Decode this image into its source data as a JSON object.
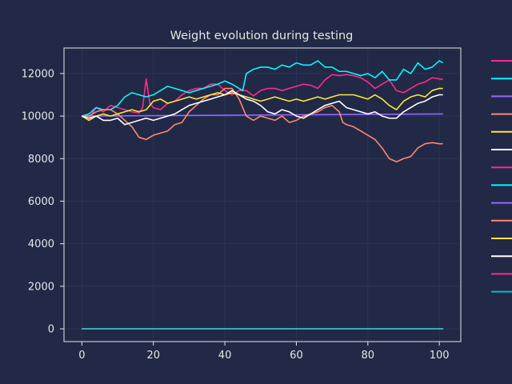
{
  "chart_data": {
    "type": "line",
    "title": "Weight evolution during testing",
    "xlabel": "",
    "ylabel": "",
    "xlim": [
      -5,
      106
    ],
    "ylim": [
      -600,
      13200
    ],
    "xticks": [
      0,
      20,
      40,
      60,
      80,
      100
    ],
    "yticks": [
      0,
      2000,
      4000,
      6000,
      8000,
      10000,
      12000
    ],
    "grid": true,
    "legend": "right (entries shown without labels)",
    "colors": {
      "background": "#212946",
      "grid": "#2a3459",
      "axis": "#e6e6e6",
      "text": "#e6e6e6"
    },
    "series": [
      {
        "color": "#ff2a8a",
        "points": [
          [
            0,
            10000
          ],
          [
            2,
            9900
          ],
          [
            4,
            10400
          ],
          [
            6,
            10200
          ],
          [
            8,
            10500
          ],
          [
            10,
            10400
          ],
          [
            12,
            10300
          ],
          [
            14,
            10200
          ],
          [
            16,
            10150
          ],
          [
            17,
            10400
          ],
          [
            18,
            11750
          ],
          [
            19,
            10600
          ],
          [
            20,
            10400
          ],
          [
            22,
            10300
          ],
          [
            24,
            10600
          ],
          [
            26,
            10700
          ],
          [
            28,
            11000
          ],
          [
            30,
            11200
          ],
          [
            32,
            11300
          ],
          [
            34,
            11300
          ],
          [
            36,
            11500
          ],
          [
            38,
            11500
          ],
          [
            40,
            11200
          ],
          [
            42,
            11000
          ],
          [
            44,
            11200
          ],
          [
            46,
            11200
          ],
          [
            48,
            10950
          ],
          [
            50,
            11200
          ],
          [
            52,
            11300
          ],
          [
            54,
            11300
          ],
          [
            56,
            11200
          ],
          [
            58,
            11300
          ],
          [
            60,
            11400
          ],
          [
            62,
            11500
          ],
          [
            64,
            11450
          ],
          [
            66,
            11300
          ],
          [
            68,
            11700
          ],
          [
            70,
            11950
          ],
          [
            72,
            11900
          ],
          [
            74,
            11950
          ],
          [
            76,
            11900
          ],
          [
            78,
            11800
          ],
          [
            80,
            11600
          ],
          [
            82,
            11300
          ],
          [
            84,
            11500
          ],
          [
            86,
            11700
          ],
          [
            88,
            11200
          ],
          [
            90,
            11100
          ],
          [
            92,
            11300
          ],
          [
            94,
            11500
          ],
          [
            96,
            11600
          ],
          [
            98,
            11800
          ],
          [
            100,
            11750
          ],
          [
            101,
            11720
          ]
        ]
      },
      {
        "color": "#08f7fe",
        "points": [
          [
            0,
            10000
          ],
          [
            2,
            10100
          ],
          [
            4,
            10400
          ],
          [
            6,
            10300
          ],
          [
            8,
            10300
          ],
          [
            10,
            10500
          ],
          [
            12,
            10900
          ],
          [
            14,
            11100
          ],
          [
            16,
            11000
          ],
          [
            18,
            10900
          ],
          [
            20,
            11000
          ],
          [
            22,
            11200
          ],
          [
            24,
            11400
          ],
          [
            26,
            11300
          ],
          [
            28,
            11200
          ],
          [
            30,
            11100
          ],
          [
            32,
            11200
          ],
          [
            34,
            11300
          ],
          [
            36,
            11400
          ],
          [
            38,
            11500
          ],
          [
            40,
            11650
          ],
          [
            42,
            11500
          ],
          [
            44,
            11300
          ],
          [
            45,
            11200
          ],
          [
            46,
            12000
          ],
          [
            48,
            12200
          ],
          [
            50,
            12300
          ],
          [
            52,
            12300
          ],
          [
            54,
            12200
          ],
          [
            56,
            12400
          ],
          [
            58,
            12300
          ],
          [
            60,
            12500
          ],
          [
            62,
            12400
          ],
          [
            64,
            12400
          ],
          [
            66,
            12600
          ],
          [
            68,
            12300
          ],
          [
            70,
            12300
          ],
          [
            72,
            12100
          ],
          [
            74,
            12100
          ],
          [
            76,
            12000
          ],
          [
            78,
            11900
          ],
          [
            80,
            12000
          ],
          [
            82,
            11800
          ],
          [
            84,
            12100
          ],
          [
            86,
            11700
          ],
          [
            88,
            11700
          ],
          [
            90,
            12200
          ],
          [
            92,
            12000
          ],
          [
            94,
            12500
          ],
          [
            96,
            12200
          ],
          [
            98,
            12300
          ],
          [
            100,
            12600
          ],
          [
            101,
            12500
          ]
        ]
      },
      {
        "color": "#9467ff",
        "points": [
          [
            0,
            10000
          ],
          [
            20,
            10020
          ],
          [
            40,
            10040
          ],
          [
            60,
            10060
          ],
          [
            80,
            10080
          ],
          [
            101,
            10100
          ]
        ]
      },
      {
        "color": "#ff8870",
        "points": [
          [
            0,
            10000
          ],
          [
            2,
            10000
          ],
          [
            4,
            10200
          ],
          [
            6,
            10300
          ],
          [
            8,
            10300
          ],
          [
            10,
            10100
          ],
          [
            12,
            9800
          ],
          [
            14,
            9500
          ],
          [
            16,
            9000
          ],
          [
            18,
            8900
          ],
          [
            20,
            9100
          ],
          [
            22,
            9200
          ],
          [
            24,
            9300
          ],
          [
            26,
            9600
          ],
          [
            28,
            9700
          ],
          [
            30,
            10200
          ],
          [
            32,
            10500
          ],
          [
            34,
            10800
          ],
          [
            36,
            11000
          ],
          [
            38,
            11000
          ],
          [
            40,
            11300
          ],
          [
            42,
            11300
          ],
          [
            44,
            10800
          ],
          [
            46,
            10000
          ],
          [
            48,
            9800
          ],
          [
            50,
            10000
          ],
          [
            52,
            9900
          ],
          [
            54,
            9800
          ],
          [
            56,
            10000
          ],
          [
            58,
            9700
          ],
          [
            60,
            9800
          ],
          [
            62,
            10000
          ],
          [
            64,
            10100
          ],
          [
            66,
            10200
          ],
          [
            68,
            10400
          ],
          [
            70,
            10500
          ],
          [
            72,
            10200
          ],
          [
            73,
            9700
          ],
          [
            74,
            9600
          ],
          [
            76,
            9500
          ],
          [
            78,
            9300
          ],
          [
            80,
            9100
          ],
          [
            82,
            8900
          ],
          [
            84,
            8500
          ],
          [
            86,
            8000
          ],
          [
            88,
            7850
          ],
          [
            90,
            8000
          ],
          [
            92,
            8100
          ],
          [
            94,
            8500
          ],
          [
            96,
            8700
          ],
          [
            98,
            8750
          ],
          [
            100,
            8700
          ],
          [
            101,
            8700
          ]
        ]
      },
      {
        "color": "#fee440",
        "points": [
          [
            0,
            10000
          ],
          [
            2,
            9800
          ],
          [
            4,
            10000
          ],
          [
            6,
            10100
          ],
          [
            8,
            10000
          ],
          [
            10,
            10100
          ],
          [
            12,
            10200
          ],
          [
            14,
            10300
          ],
          [
            16,
            10200
          ],
          [
            18,
            10300
          ],
          [
            20,
            10700
          ],
          [
            22,
            10800
          ],
          [
            24,
            10600
          ],
          [
            26,
            10700
          ],
          [
            28,
            10800
          ],
          [
            30,
            10900
          ],
          [
            32,
            10800
          ],
          [
            34,
            10900
          ],
          [
            36,
            11000
          ],
          [
            38,
            11100
          ],
          [
            40,
            11000
          ],
          [
            42,
            11100
          ],
          [
            44,
            11000
          ],
          [
            46,
            10900
          ],
          [
            48,
            10800
          ],
          [
            50,
            10700
          ],
          [
            52,
            10800
          ],
          [
            54,
            10900
          ],
          [
            56,
            10800
          ],
          [
            58,
            10700
          ],
          [
            60,
            10800
          ],
          [
            62,
            10700
          ],
          [
            64,
            10800
          ],
          [
            66,
            10900
          ],
          [
            68,
            10800
          ],
          [
            70,
            10900
          ],
          [
            72,
            11000
          ],
          [
            74,
            11000
          ],
          [
            76,
            11000
          ],
          [
            78,
            10900
          ],
          [
            80,
            10800
          ],
          [
            82,
            11000
          ],
          [
            84,
            10800
          ],
          [
            86,
            10500
          ],
          [
            88,
            10300
          ],
          [
            90,
            10700
          ],
          [
            92,
            10900
          ],
          [
            94,
            11000
          ],
          [
            96,
            10900
          ],
          [
            98,
            11200
          ],
          [
            100,
            11300
          ],
          [
            101,
            11300
          ]
        ]
      },
      {
        "color": "#ffffff",
        "points": [
          [
            0,
            10000
          ],
          [
            2,
            9900
          ],
          [
            4,
            10000
          ],
          [
            6,
            9800
          ],
          [
            8,
            9800
          ],
          [
            10,
            9900
          ],
          [
            12,
            9600
          ],
          [
            14,
            9700
          ],
          [
            16,
            9800
          ],
          [
            18,
            9900
          ],
          [
            20,
            9800
          ],
          [
            22,
            9900
          ],
          [
            24,
            10000
          ],
          [
            26,
            10100
          ],
          [
            28,
            10300
          ],
          [
            30,
            10500
          ],
          [
            32,
            10600
          ],
          [
            34,
            10700
          ],
          [
            36,
            10800
          ],
          [
            38,
            10900
          ],
          [
            40,
            11000
          ],
          [
            42,
            11200
          ],
          [
            44,
            11000
          ],
          [
            46,
            10800
          ],
          [
            48,
            10700
          ],
          [
            50,
            10500
          ],
          [
            52,
            10200
          ],
          [
            54,
            10100
          ],
          [
            56,
            10300
          ],
          [
            58,
            10200
          ],
          [
            60,
            10000
          ],
          [
            62,
            9900
          ],
          [
            64,
            10100
          ],
          [
            66,
            10300
          ],
          [
            68,
            10500
          ],
          [
            70,
            10600
          ],
          [
            72,
            10700
          ],
          [
            74,
            10400
          ],
          [
            76,
            10300
          ],
          [
            78,
            10200
          ],
          [
            80,
            10100
          ],
          [
            82,
            10200
          ],
          [
            84,
            10000
          ],
          [
            86,
            9900
          ],
          [
            88,
            9900
          ],
          [
            90,
            10200
          ],
          [
            92,
            10400
          ],
          [
            94,
            10600
          ],
          [
            96,
            10700
          ],
          [
            98,
            10900
          ],
          [
            100,
            11000
          ],
          [
            101,
            11000
          ]
        ]
      },
      {
        "color": "#ff2a8a",
        "points": [
          [
            0,
            0
          ],
          [
            101,
            0
          ]
        ]
      },
      {
        "color": "#08f7fe",
        "points": [
          [
            0,
            0
          ],
          [
            101,
            0
          ]
        ]
      },
      {
        "color": "#9467ff",
        "points": [
          [
            0,
            0
          ],
          [
            101,
            0
          ]
        ]
      },
      {
        "color": "#ff8870",
        "points": [
          [
            0,
            0
          ],
          [
            101,
            0
          ]
        ]
      },
      {
        "color": "#fee440",
        "points": [
          [
            0,
            0
          ],
          [
            101,
            0
          ]
        ]
      },
      {
        "color": "#ffffff",
        "points": [
          [
            0,
            0
          ],
          [
            101,
            0
          ]
        ]
      },
      {
        "color": "#ff2a8a",
        "points": [
          [
            0,
            0
          ],
          [
            101,
            0
          ]
        ]
      },
      {
        "color": "#0fb5c7",
        "points": [
          [
            0,
            0
          ],
          [
            101,
            0
          ]
        ]
      }
    ]
  }
}
